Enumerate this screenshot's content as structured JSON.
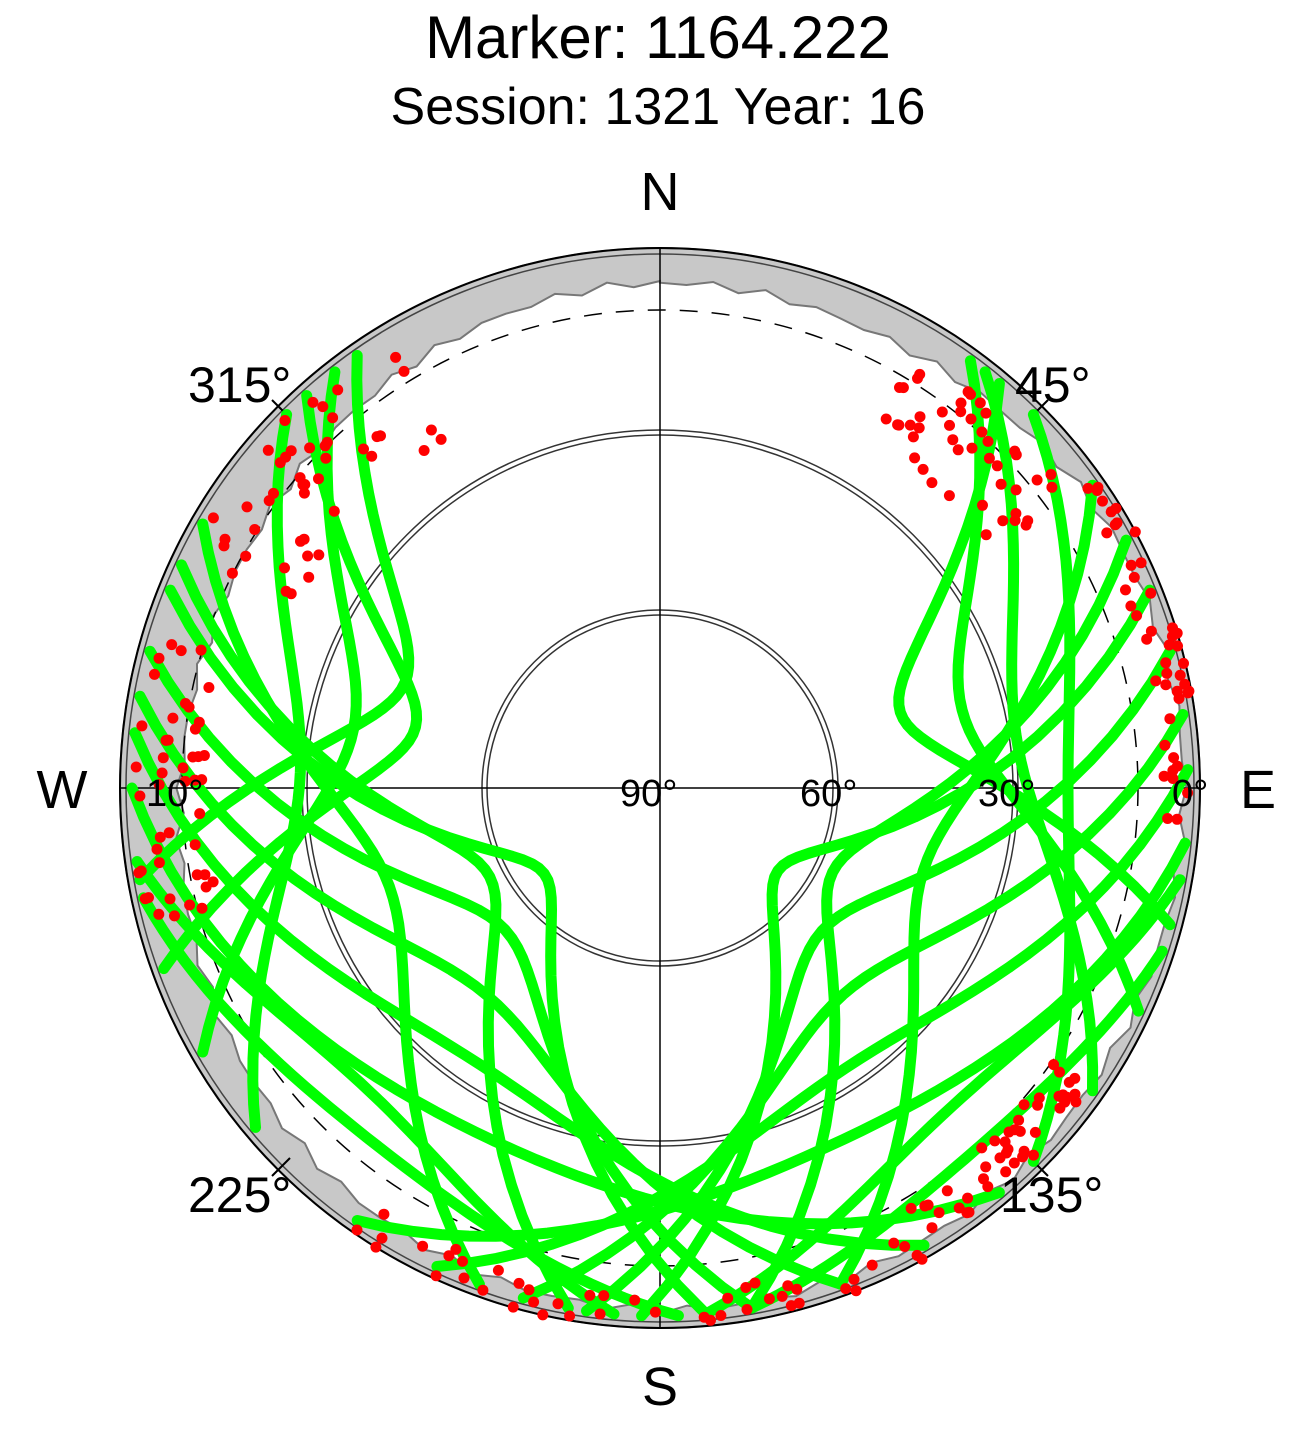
{
  "title": "Marker: 1164.222",
  "subtitle": "Session: 1321 Year: 16",
  "chart_data": {
    "type": "scatter",
    "projection": "polar skyplot (azimuth clockwise from North, elevation 90° at center)",
    "cardinal_labels": {
      "north": "N",
      "east": "E",
      "south": "S",
      "west": "W"
    },
    "azimuth_tick_labels": [
      "45°",
      "135°",
      "225°",
      "315°"
    ],
    "elevation_tick_labels": [
      "90°",
      "60°",
      "30°",
      "0°",
      "10°"
    ],
    "elevation_circles": [
      60,
      30,
      0
    ],
    "elevation_mask": 10,
    "grid": true,
    "colors": {
      "kept": "#00ff00",
      "rejected": "#ff0000",
      "obstruction": "#c8c8c8",
      "axis": "#000000"
    },
    "tracks": [
      {
        "az_start": 318,
        "az_end": 250,
        "peak_az": 300,
        "peak_el": 48
      },
      {
        "az_start": 322,
        "az_end": 240,
        "peak_az": 292,
        "peak_el": 38
      },
      {
        "az_start": 325,
        "az_end": 260,
        "peak_az": 305,
        "peak_el": 44
      },
      {
        "az_start": 315,
        "az_end": 230,
        "peak_az": 280,
        "peak_el": 30
      },
      {
        "az_start": 300,
        "az_end": 200,
        "peak_az": 250,
        "peak_el": 42
      },
      {
        "az_start": 295,
        "az_end": 190,
        "peak_az": 240,
        "peak_el": 58
      },
      {
        "az_start": 292,
        "az_end": 175,
        "peak_az": 225,
        "peak_el": 66
      },
      {
        "az_start": 285,
        "az_end": 170,
        "peak_az": 215,
        "peak_el": 55
      },
      {
        "az_start": 280,
        "az_end": 160,
        "peak_az": 205,
        "peak_el": 45
      },
      {
        "az_start": 276,
        "az_end": 150,
        "peak_az": 195,
        "peak_el": 35
      },
      {
        "az_start": 270,
        "az_end": 140,
        "peak_az": 190,
        "peak_el": 25
      },
      {
        "az_start": 262,
        "az_end": 185,
        "peak_az": 220,
        "peak_el": 20
      },
      {
        "az_start": 258,
        "az_end": 178,
        "peak_az": 212,
        "peak_el": 14
      },
      {
        "az_start": 40,
        "az_end": 105,
        "peak_az": 60,
        "peak_el": 48
      },
      {
        "az_start": 36,
        "az_end": 115,
        "peak_az": 68,
        "peak_el": 38
      },
      {
        "az_start": 38,
        "az_end": 125,
        "peak_az": 78,
        "peak_el": 30
      },
      {
        "az_start": 45,
        "az_end": 135,
        "peak_az": 90,
        "peak_el": 22
      },
      {
        "az_start": 55,
        "az_end": 160,
        "peak_az": 108,
        "peak_el": 44
      },
      {
        "az_start": 62,
        "az_end": 170,
        "peak_az": 118,
        "peak_el": 58
      },
      {
        "az_start": 68,
        "az_end": 182,
        "peak_az": 132,
        "peak_el": 66
      },
      {
        "az_start": 75,
        "az_end": 188,
        "peak_az": 140,
        "peak_el": 54
      },
      {
        "az_start": 82,
        "az_end": 195,
        "peak_az": 150,
        "peak_el": 44
      },
      {
        "az_start": 88,
        "az_end": 205,
        "peak_az": 160,
        "peak_el": 34
      },
      {
        "az_start": 96,
        "az_end": 215,
        "peak_az": 168,
        "peak_el": 24
      },
      {
        "az_start": 100,
        "az_end": 175,
        "peak_az": 140,
        "peak_el": 18
      },
      {
        "az_start": 108,
        "az_end": 170,
        "peak_az": 145,
        "peak_el": 10
      }
    ],
    "rejected_clusters": [
      {
        "az_from": 295,
        "az_to": 330,
        "el_from": 2,
        "el_to": 22
      },
      {
        "az_from": 255,
        "az_to": 290,
        "el_from": 2,
        "el_to": 14
      },
      {
        "az_from": 30,
        "az_to": 55,
        "el_from": 6,
        "el_to": 22
      },
      {
        "az_from": 55,
        "az_to": 95,
        "el_from": 0,
        "el_to": 6
      },
      {
        "az_from": 125,
        "az_to": 150,
        "el_from": 2,
        "el_to": 10
      },
      {
        "az_from": 150,
        "az_to": 215,
        "el_from": 0,
        "el_to": 6
      }
    ]
  }
}
